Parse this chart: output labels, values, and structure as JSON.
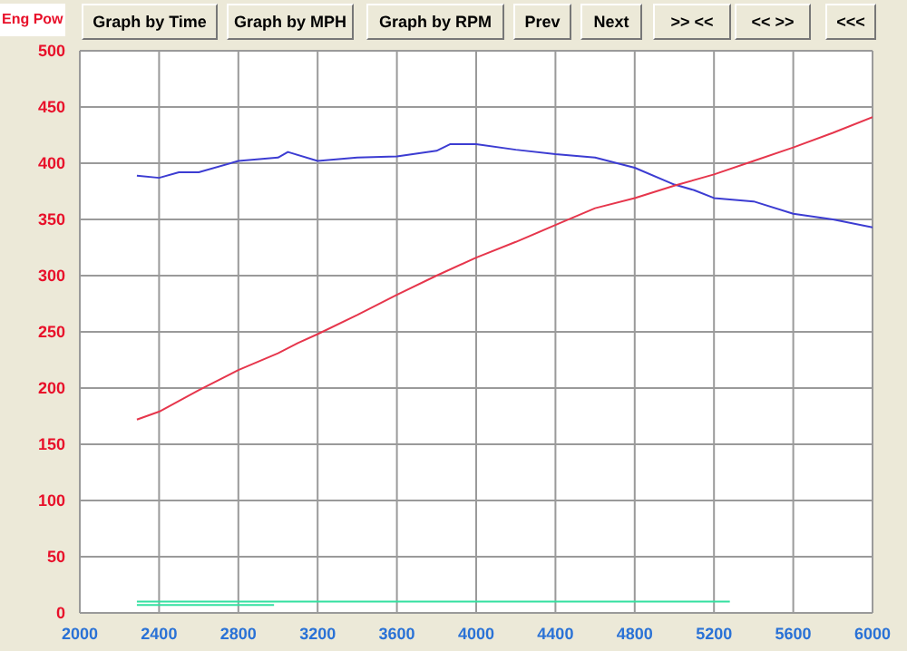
{
  "chart_data": {
    "type": "line",
    "ylabel": "Eng Pow",
    "annotations": [
      "Graph by Time",
      "Graph by MPH",
      "Graph by RPM",
      "Prev",
      "Next",
      ">> <<",
      "<< >>",
      "<<<"
    ],
    "xlim": [
      2000,
      6000
    ],
    "xticks": [
      2000,
      2400,
      2800,
      3200,
      3600,
      4000,
      4400,
      4800,
      5200,
      5600,
      6000
    ],
    "ylim": [
      0,
      500
    ],
    "yticks": [
      0,
      50,
      100,
      150,
      200,
      250,
      300,
      350,
      400,
      450,
      500
    ],
    "grid": true,
    "legend": false,
    "marker": "none",
    "line_style": "solid",
    "series": [
      {
        "color": "#3c3cd2",
        "x": [
          2288,
          2400,
          2500,
          2600,
          2800,
          3000,
          3050,
          3200,
          3400,
          3600,
          3800,
          3870,
          4000,
          4200,
          4400,
          4600,
          4800,
          5000,
          5100,
          5200,
          5400,
          5600,
          5800,
          6000
        ],
        "values": [
          389,
          387,
          392,
          392,
          402,
          405,
          410,
          402,
          405,
          406,
          411,
          417,
          417,
          412,
          408,
          405,
          396,
          381,
          376,
          369,
          366,
          355,
          350,
          343
        ]
      },
      {
        "color": "#e6364c",
        "x": [
          2288,
          2400,
          2600,
          2800,
          3000,
          3100,
          3200,
          3400,
          3600,
          3800,
          4000,
          4200,
          4400,
          4600,
          4800,
          5000,
          5200,
          5400,
          5600,
          5800,
          6000
        ],
        "values": [
          172,
          179,
          198,
          216,
          231,
          240,
          248,
          265,
          283,
          300,
          316,
          330,
          345,
          360,
          369,
          380,
          390,
          402,
          414,
          427,
          441
        ]
      },
      {
        "color": "#33e0a0",
        "x": [
          2288,
          3000,
          3500,
          4000,
          4500,
          5000,
          5280
        ],
        "values": [
          10,
          10,
          10,
          10,
          10,
          10,
          10
        ]
      },
      {
        "color": "#33e0a0",
        "x": [
          2288,
          2980
        ],
        "values": [
          7,
          7
        ]
      }
    ]
  }
}
